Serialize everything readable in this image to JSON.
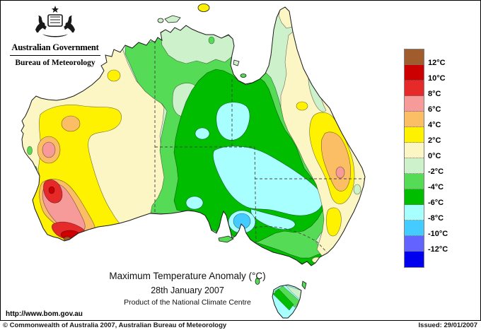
{
  "header": {
    "government": "Australian Government",
    "bureau": "Bureau of Meteorology"
  },
  "title": {
    "main": "Maximum Temperature Anomaly (°C)",
    "date": "28th January 2007",
    "product": "Product of the National Climate Centre"
  },
  "url": "http://www.bom.gov.au",
  "footer": {
    "copyright": "© Commonwealth of Australia 2007, Australian Bureau of Meteorology",
    "issued": "Issued: 29/01/2007"
  },
  "legend": {
    "colors": [
      "#A05C2C",
      "#CC0000",
      "#E62929",
      "#F79A9A",
      "#FBBE64",
      "#FFF200",
      "#FCF5C4",
      "#CDF1CB",
      "#55DB55",
      "#00BD00",
      "#A8FFFF",
      "#44CBFF",
      "#6363FF",
      "#0000EE"
    ],
    "labels": [
      "12°C",
      "10°C",
      "8°C",
      "6°C",
      "4°C",
      "2°C",
      "0°C",
      "-2°C",
      "-4°C",
      "-6°C",
      "-8°C",
      "-10°C",
      "-12°C"
    ]
  }
}
